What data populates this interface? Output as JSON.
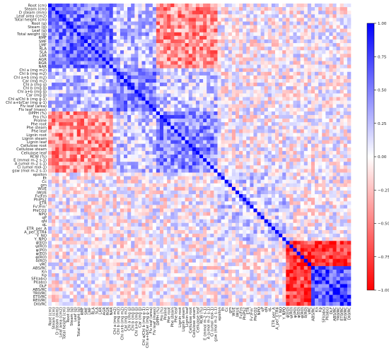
{
  "chart_data": {
    "type": "heatmap",
    "title": "",
    "xlabel": "",
    "ylabel": "",
    "value_range": [
      -1.0,
      1.0
    ],
    "colormap": "bwr",
    "colors": {
      "low": "#ff0000",
      "mid": "#ffffff",
      "high": "#0000ff"
    },
    "grid": false,
    "legend": "colorbar-right",
    "colorbar_ticks": [
      "1.00",
      "0.75",
      "0.50",
      "0.25",
      "0.00",
      "−0.25",
      "−0.50",
      "−0.75",
      "−1.00"
    ],
    "variables": [
      "Root (cm)",
      "Steam (cm)",
      "D steam (mm)",
      "Leaf area (cm2)",
      "Total height (cm)",
      "Root (g)",
      "Steam (g)",
      "Leaf (g)",
      "Total weight (g)",
      "RMF",
      "SMF",
      "LMF",
      "RLA",
      "SLA",
      "LAR",
      "AGR",
      "RGR",
      "NAR",
      "Chl a (mg m2)",
      "Chl b (mg m2)",
      "Chl a+b (mg m2)",
      "Car (mg m2)",
      "Chl a (mg g)",
      "Chl b (mg g)",
      "Chl a+b (mg g)",
      "Car (mg g)",
      "Chl a/Chl b (mg g-1)",
      "Chl a+b/Car (mg g-1)",
      "Flv leaf (area)",
      "Flv leaf (mass)",
      "DPPH (%)",
      "Pro (%)",
      "Proline",
      "Phe root",
      "Phe steam",
      "Phe leaf",
      "Lignin root",
      "Lignin steam",
      "Lignin leaf",
      "Cellulose root",
      "Cellulose steam",
      "Cellulose leaf",
      "RCW (%)",
      "E (mmol m-2 s-1)",
      "A (umol m-2 s-1)",
      "Ci (umol mol-1)",
      "gsw (mol m-2 s-1)",
      "epsilon",
      "Et",
      "Cc",
      "gm",
      "WUE",
      "iWUE",
      "Fv/Fm",
      "PhiPS2",
      "ETR",
      "Fv'/Fm'",
      "PhiCO2",
      "NPQ",
      "qP",
      "qN",
      "qL",
      "ETR_per_A",
      "A_per_ETR4",
      "Y_NO",
      "Y_NPQ",
      "ψ(EO)",
      "ψ(RO)",
      "φ(PO)",
      "φ(EO)",
      "φ(RO)",
      "δ(RO)",
      "γRC",
      "ABS/RC",
      "Kn",
      "Kp",
      "SFI(abs)",
      "PI(abs)",
      "DLF",
      "ABS/RC",
      "TR0/RC",
      "ET0/RC",
      "RE0/RC",
      "DI0/RC"
    ],
    "y_tick_labels": [
      "Root (cm)",
      "Steam (cm)",
      "D steam (mm)",
      "Leaf area (cm2)",
      "Total height (cm)",
      "Root (g)",
      "Steam (g)",
      "Leaf (g)",
      "Total weight (g)",
      "RMF",
      "SMF",
      "LMF",
      "RLA",
      "SLA",
      "LAR",
      "AGR",
      "RGR",
      "NAR",
      "Chl a (mg m2)",
      "Chl b (mg m2)",
      "Chl a+b (mg m2)",
      "Car (mg m2)",
      "Chl a (mg g)",
      "Chl b (mg g)",
      "Chl a+b (mg g)",
      "Car (mg g)",
      "Chl a/Chl b (mg g-1)",
      "Chl a+b/Car (mg g-1)",
      "Flv leaf (area)",
      "Flv leaf (mass)",
      "DPPH (%)",
      "Pro (%)",
      "Proline",
      "Phe root",
      "Phe steam",
      "Phe leaf",
      "Lignin root",
      "Lignin steam",
      "Lignin leaf",
      "Cellulose root",
      "Cellulose steam",
      "Cellulose leaf",
      "RCW (%)",
      "E (mmol m-2 s-1)",
      "A (umol m-2 s-1)",
      "Ci (umol mol-1)",
      "gsw (mol m-2 s-1)",
      "epsilon",
      "Et",
      "Cc",
      "gm",
      "WUE",
      "iWUE",
      "Fv/Fm",
      "PhiPS2",
      "ETR",
      "Fv'/Fm'",
      "PhiCO2",
      "NPQ",
      "qP",
      "qN",
      "qL",
      "ETR_per_A",
      "A_per_ETR4",
      "Y_NO",
      "Y_NPQ",
      "ψ(EO)",
      "ψ(RO)",
      "φ(PO)",
      "φ(EO)",
      "φ(RO)",
      "δ(RO)",
      "γRC",
      "ABS/RC",
      "Kn",
      "Kp",
      "SFI(abs)",
      "PI(abs)",
      "DLF",
      "ABS/RC",
      "TR0/RC",
      "ET0/RC",
      "RE0/RC",
      "DI0/RC"
    ],
    "x_tick_labels": [
      "Root (cm)",
      "Steam (cm)",
      "D steam (mm)",
      "Leaf area (cm2)",
      "Total height (cm)",
      "Root (g)",
      "Steam (g)",
      "Leaf (g)",
      "Total weight (g)",
      "RMF",
      "SMF",
      "LMF",
      "RLA",
      "SLA",
      "LAR",
      "AGR",
      "RGR",
      "NAR",
      "Chl a (mg m2)",
      "Chl b (mg m2)",
      "Chl a+b (mg m2)",
      "Car (mg m2)",
      "Chl a (mg g)",
      "Chl b (mg g)",
      "Chl a+b (mg g)",
      "Car (mg g)",
      "Chl a/Chl b (mg g-1)",
      "Chl a+b/Car (mg g-1)",
      "Flv leaf (area)",
      "Flv leaf (mass)",
      "DPPH (%)",
      "Pro (%)",
      "Proline",
      "Phe root",
      "Phe steam",
      "Phe leaf",
      "Lignin root",
      "Lignin steam",
      "Lignin leaf",
      "Cellulose root",
      "Cellulose steam",
      "Cellulose leaf",
      "RCW (%)",
      "E (mmol m-2 s-1)",
      "A (umol m-2 s-1)",
      "Ci (umol mol-1)",
      "gsw (mol m-2 s-1)",
      "epsilon",
      "Et",
      "Cc",
      "gm",
      "WUE",
      "iWUE",
      "Fv/Fm",
      "PhiPS2",
      "ETR",
      "Fv'/Fm'",
      "PhiCO2",
      "NPQ",
      "qP",
      "qN",
      "qL",
      "ETR_per_A",
      "A_per_ETR4",
      "Y_NO",
      "Y_NPQ",
      "ψ(EO)",
      "ψ(RO)",
      "φ(PO)",
      "φ(EO)",
      "φ(RO)",
      "δ(RO)",
      "γRC",
      "ABS/RC",
      "Kn",
      "Kp",
      "SFI(abs)",
      "PI(abs)",
      "DLF",
      "ABS/RC",
      "TR0/RC",
      "ET0/RC",
      "RE0/RC",
      "DI0/RC"
    ],
    "correlation_blocks": [
      {
        "rows": [
          0,
          17
        ],
        "cols": [
          0,
          17
        ],
        "value": 0.55
      },
      {
        "rows": [
          18,
          29
        ],
        "cols": [
          18,
          29
        ],
        "value": 0.5
      },
      {
        "rows": [
          30,
          46
        ],
        "cols": [
          30,
          46
        ],
        "value": 0.45
      },
      {
        "rows": [
          47,
          65
        ],
        "cols": [
          47,
          65
        ],
        "value": 0.15
      },
      {
        "rows": [
          66,
          83
        ],
        "cols": [
          66,
          83
        ],
        "value": 0.7
      },
      {
        "rows": [
          0,
          17
        ],
        "cols": [
          30,
          46
        ],
        "value": -0.45
      },
      {
        "rows": [
          0,
          17
        ],
        "cols": [
          18,
          29
        ],
        "value": 0.25
      },
      {
        "rows": [
          18,
          29
        ],
        "cols": [
          30,
          46
        ],
        "value": 0.2
      },
      {
        "rows": [
          66,
          83
        ],
        "cols": [
          66,
          72
        ],
        "value": -0.75
      }
    ]
  }
}
